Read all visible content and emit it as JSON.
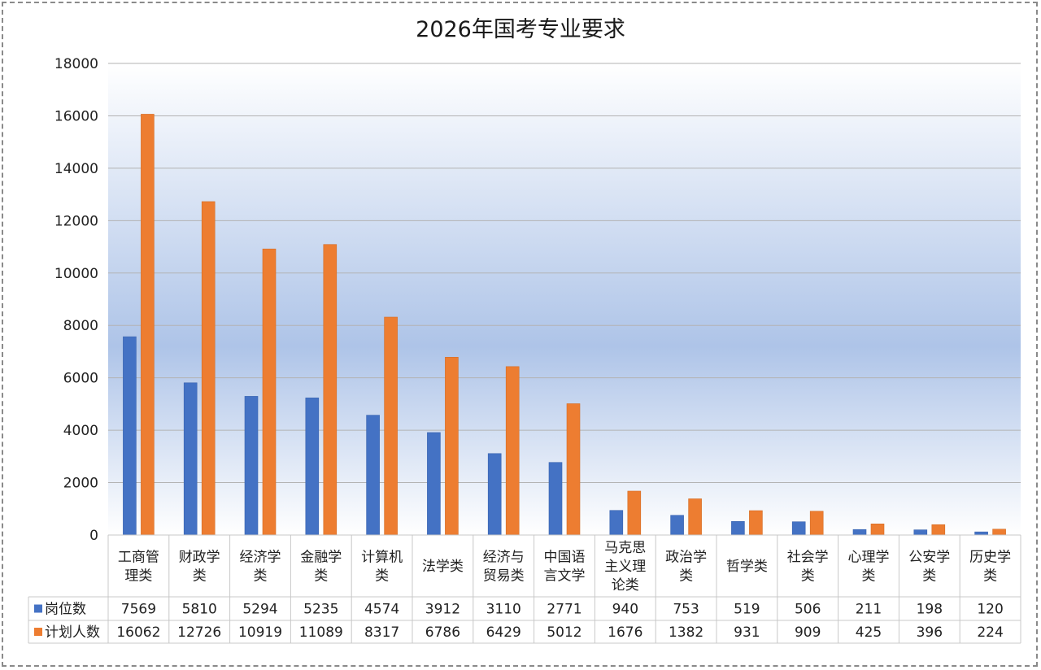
{
  "chart_data": {
    "type": "bar",
    "title": "2026年国考专业要求",
    "categories": [
      [
        "工商管",
        "理类"
      ],
      [
        "财政学",
        "类"
      ],
      [
        "经济学",
        "类"
      ],
      [
        "金融学",
        "类"
      ],
      [
        "计算机",
        "类"
      ],
      [
        "法学类"
      ],
      [
        "经济与",
        "贸易类"
      ],
      [
        "中国语",
        "言文学"
      ],
      [
        "马克思",
        "主义理",
        "论类"
      ],
      [
        "政治学",
        "类"
      ],
      [
        "哲学类"
      ],
      [
        "社会学",
        "类"
      ],
      [
        "心理学",
        "类"
      ],
      [
        "公安学",
        "类"
      ],
      [
        "历史学",
        "类"
      ]
    ],
    "series": [
      {
        "name": "岗位数",
        "color": "#4472c4",
        "values": [
          7569,
          5810,
          5294,
          5235,
          4574,
          3912,
          3110,
          2771,
          940,
          753,
          519,
          506,
          211,
          198,
          120
        ]
      },
      {
        "name": "计划人数",
        "color": "#ed7d31",
        "values": [
          16062,
          12726,
          10919,
          11089,
          8317,
          6786,
          6429,
          5012,
          1676,
          1382,
          931,
          909,
          425,
          396,
          224
        ]
      }
    ],
    "ylim": [
      0,
      18000
    ],
    "yticks": [
      0,
      2000,
      4000,
      6000,
      8000,
      10000,
      12000,
      14000,
      16000,
      18000
    ],
    "grid": true,
    "legend": "data-table-left",
    "data_table": true
  }
}
